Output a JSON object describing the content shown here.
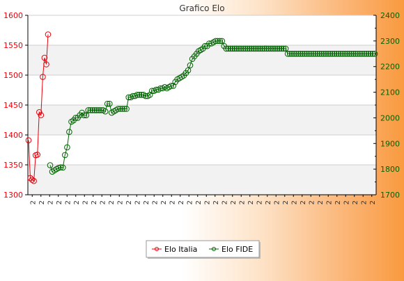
{
  "chart_data": {
    "type": "line",
    "title": "Grafico Elo",
    "xlabel": "",
    "ylabel": "",
    "ylim": [
      1300,
      1600
    ],
    "y2lim": [
      1700,
      2400
    ],
    "left_ticks": [
      1300,
      1350,
      1400,
      1450,
      1500,
      1550,
      1600
    ],
    "right_ticks": [
      1700,
      1800,
      1900,
      2000,
      2100,
      2200,
      2300,
      2400
    ],
    "grid": true,
    "legend_position": "bottom-center",
    "x_tick_labels": [
      "2",
      "2",
      "2",
      "2",
      "2",
      "2",
      "2",
      "2",
      "2",
      "2",
      "2",
      "2",
      "2",
      "2",
      "2",
      "2",
      "2",
      "2",
      "2",
      "2",
      "2",
      "2",
      "2",
      "2",
      "2",
      "2",
      "2",
      "2",
      "2",
      "2",
      "2",
      "2",
      "2",
      "2",
      "2",
      "2",
      "2",
      "2",
      "2",
      "2"
    ],
    "series": [
      {
        "name": "Elo Italia",
        "color": "#e8000b",
        "axis": "left",
        "values": [
          1391,
          1328,
          1325,
          1323,
          1366,
          1367,
          1438,
          1433,
          1497,
          1529,
          1518,
          1568
        ]
      },
      {
        "name": "Elo FIDE",
        "color": "#006400",
        "axis": "right",
        "values": [
          1815,
          1790,
          1795,
          1800,
          1805,
          1807,
          1806,
          1855,
          1885,
          1945,
          1985,
          1990,
          2000,
          2000,
          2010,
          2020,
          2010,
          2010,
          2030,
          2030,
          2030,
          2030,
          2030,
          2030,
          2030,
          2030,
          2025,
          2055,
          2055,
          2020,
          2025,
          2030,
          2035,
          2035,
          2035,
          2035,
          2035,
          2080,
          2080,
          2085,
          2085,
          2090,
          2090,
          2090,
          2090,
          2085,
          2085,
          2090,
          2105,
          2105,
          2110,
          2110,
          2115,
          2115,
          2120,
          2115,
          2120,
          2125,
          2125,
          2140,
          2150,
          2155,
          2160,
          2165,
          2175,
          2185,
          2205,
          2230,
          2240,
          2250,
          2260,
          2265,
          2270,
          2280,
          2280,
          2290,
          2290,
          2295,
          2300,
          2300,
          2300,
          2300,
          2280,
          2270,
          2270,
          2270,
          2270,
          2270,
          2270,
          2270,
          2270,
          2270,
          2270,
          2270,
          2270,
          2270,
          2270,
          2270,
          2270,
          2270,
          2270,
          2270,
          2270,
          2270,
          2270,
          2270,
          2270,
          2270,
          2270,
          2270,
          2270,
          2270,
          2250,
          2250,
          2250,
          2250,
          2250,
          2250,
          2250,
          2250,
          2250,
          2250,
          2250,
          2250,
          2250,
          2250,
          2250,
          2250,
          2250,
          2250,
          2250,
          2250,
          2250,
          2250,
          2250,
          2250,
          2250,
          2250,
          2250,
          2250,
          2250,
          2250,
          2250,
          2250,
          2250,
          2250,
          2250,
          2250,
          2250,
          2250,
          2250,
          2250,
          2250,
          2250
        ]
      }
    ]
  },
  "legend": {
    "italia_label": "Elo Italia",
    "fide_label": "Elo FIDE"
  }
}
